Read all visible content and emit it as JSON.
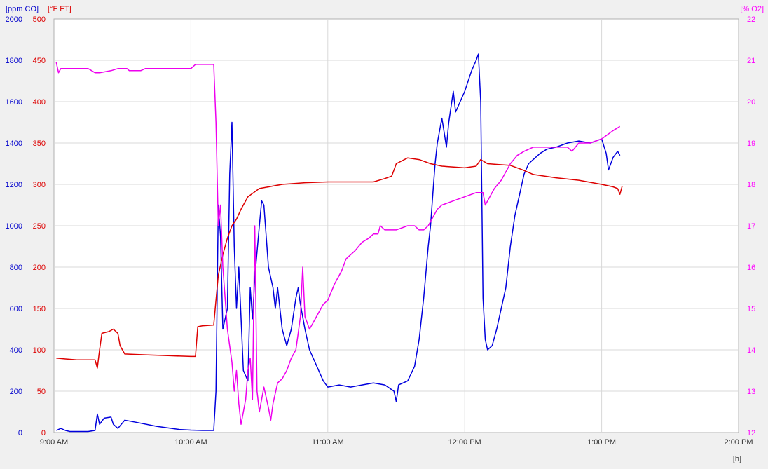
{
  "chart_data": {
    "type": "line",
    "axes": {
      "x": {
        "unit_label": "[h]",
        "range": [
          "9:00 AM",
          "2:00 PM"
        ],
        "ticks": [
          "9:00 AM",
          "10:00 AM",
          "11:00 AM",
          "12:00 PM",
          "1:00 PM",
          "2:00 PM"
        ]
      },
      "y_co": {
        "label": "[ppm CO]",
        "color": "#0000cc",
        "range": [
          0,
          2000
        ],
        "ticks": [
          "0",
          "200",
          "400",
          "600",
          "800",
          "1000",
          "1200",
          "1400",
          "1600",
          "1800",
          "2000"
        ]
      },
      "y_temp": {
        "label": "[°F FT]",
        "color": "#dd0000",
        "range": [
          0,
          500
        ],
        "ticks": [
          "0",
          "50",
          "100",
          "150",
          "200",
          "250",
          "300",
          "350",
          "400",
          "450",
          "500"
        ]
      },
      "y_o2": {
        "label": "[% O2]",
        "color": "#ff00ff",
        "range": [
          12,
          22
        ],
        "ticks": [
          "12",
          "13",
          "14",
          "15",
          "16",
          "17",
          "18",
          "19",
          "20",
          "21",
          "22"
        ]
      }
    },
    "grid": true,
    "series": [
      {
        "axis": "y_co",
        "color": "#0000dd",
        "points": [
          [
            "9:01",
            10
          ],
          [
            "9:03",
            20
          ],
          [
            "9:05",
            10
          ],
          [
            "9:07",
            5
          ],
          [
            "9:15",
            5
          ],
          [
            "9:18",
            10
          ],
          [
            "9:19",
            90
          ],
          [
            "9:20",
            40
          ],
          [
            "9:22",
            70
          ],
          [
            "9:25",
            75
          ],
          [
            "9:26",
            40
          ],
          [
            "9:28",
            20
          ],
          [
            "9:31",
            60
          ],
          [
            "9:36",
            50
          ],
          [
            "9:45",
            30
          ],
          [
            "9:55",
            15
          ],
          [
            "10:00",
            12
          ],
          [
            "10:05",
            10
          ],
          [
            "10:10",
            10
          ],
          [
            "10:11",
            200
          ],
          [
            "10:12",
            1100
          ],
          [
            "10:13",
            950
          ],
          [
            "10:14",
            500
          ],
          [
            "10:16",
            600
          ],
          [
            "10:17",
            1250
          ],
          [
            "10:18",
            1500
          ],
          [
            "10:19",
            900
          ],
          [
            "10:20",
            600
          ],
          [
            "10:21",
            800
          ],
          [
            "10:23",
            300
          ],
          [
            "10:25",
            250
          ],
          [
            "10:26",
            700
          ],
          [
            "10:27",
            550
          ],
          [
            "10:28",
            750
          ],
          [
            "10:30",
            1000
          ],
          [
            "10:31",
            1120
          ],
          [
            "10:32",
            1100
          ],
          [
            "10:34",
            800
          ],
          [
            "10:36",
            700
          ],
          [
            "10:37",
            600
          ],
          [
            "10:38",
            700
          ],
          [
            "10:40",
            500
          ],
          [
            "10:42",
            420
          ],
          [
            "10:44",
            500
          ],
          [
            "10:46",
            650
          ],
          [
            "10:47",
            700
          ],
          [
            "10:48",
            620
          ],
          [
            "10:50",
            500
          ],
          [
            "10:52",
            400
          ],
          [
            "10:54",
            350
          ],
          [
            "10:56",
            300
          ],
          [
            "10:58",
            250
          ],
          [
            "11:00",
            220
          ],
          [
            "11:05",
            230
          ],
          [
            "11:10",
            220
          ],
          [
            "11:15",
            230
          ],
          [
            "11:20",
            240
          ],
          [
            "11:25",
            230
          ],
          [
            "11:29",
            200
          ],
          [
            "11:30",
            150
          ],
          [
            "11:31",
            230
          ],
          [
            "11:35",
            250
          ],
          [
            "11:38",
            320
          ],
          [
            "11:40",
            450
          ],
          [
            "11:42",
            650
          ],
          [
            "11:44",
            900
          ],
          [
            "11:45",
            1000
          ],
          [
            "11:46",
            1150
          ],
          [
            "11:47",
            1300
          ],
          [
            "11:48",
            1400
          ],
          [
            "11:50",
            1520
          ],
          [
            "11:51",
            1450
          ],
          [
            "11:52",
            1380
          ],
          [
            "11:53",
            1500
          ],
          [
            "11:55",
            1650
          ],
          [
            "11:56",
            1550
          ],
          [
            "11:58",
            1600
          ],
          [
            "12:00",
            1650
          ],
          [
            "12:03",
            1750
          ],
          [
            "12:05",
            1800
          ],
          [
            "12:06",
            1830
          ],
          [
            "12:07",
            1600
          ],
          [
            "12:08",
            650
          ],
          [
            "12:09",
            450
          ],
          [
            "12:10",
            400
          ],
          [
            "12:12",
            420
          ],
          [
            "12:14",
            500
          ],
          [
            "12:16",
            600
          ],
          [
            "12:18",
            700
          ],
          [
            "12:20",
            900
          ],
          [
            "12:22",
            1050
          ],
          [
            "12:24",
            1150
          ],
          [
            "12:26",
            1250
          ],
          [
            "12:28",
            1300
          ],
          [
            "12:30",
            1320
          ],
          [
            "12:33",
            1350
          ],
          [
            "12:36",
            1370
          ],
          [
            "12:40",
            1380
          ],
          [
            "12:45",
            1400
          ],
          [
            "12:50",
            1410
          ],
          [
            "12:55",
            1400
          ],
          [
            "13:00",
            1420
          ],
          [
            "13:02",
            1350
          ],
          [
            "13:03",
            1270
          ],
          [
            "13:05",
            1330
          ],
          [
            "13:07",
            1360
          ],
          [
            "13:08",
            1340
          ]
        ]
      },
      {
        "axis": "y_temp",
        "color": "#dd0000",
        "points": [
          [
            "9:01",
            90
          ],
          [
            "9:05",
            89
          ],
          [
            "9:10",
            88
          ],
          [
            "9:18",
            88
          ],
          [
            "9:19",
            78
          ],
          [
            "9:20",
            100
          ],
          [
            "9:21",
            120
          ],
          [
            "9:24",
            122
          ],
          [
            "9:26",
            125
          ],
          [
            "9:28",
            120
          ],
          [
            "9:29",
            105
          ],
          [
            "9:31",
            95
          ],
          [
            "9:40",
            94
          ],
          [
            "9:50",
            93
          ],
          [
            "10:00",
            92
          ],
          [
            "10:02",
            92
          ],
          [
            "10:03",
            128
          ],
          [
            "10:05",
            129
          ],
          [
            "10:10",
            130
          ],
          [
            "10:11",
            160
          ],
          [
            "10:12",
            190
          ],
          [
            "10:14",
            215
          ],
          [
            "10:16",
            235
          ],
          [
            "10:18",
            250
          ],
          [
            "10:20",
            258
          ],
          [
            "10:22",
            270
          ],
          [
            "10:25",
            285
          ],
          [
            "10:30",
            295
          ],
          [
            "10:40",
            300
          ],
          [
            "10:50",
            302
          ],
          [
            "11:00",
            303
          ],
          [
            "11:10",
            303
          ],
          [
            "11:20",
            303
          ],
          [
            "11:25",
            307
          ],
          [
            "11:28",
            310
          ],
          [
            "11:30",
            325
          ],
          [
            "11:35",
            332
          ],
          [
            "11:40",
            330
          ],
          [
            "11:45",
            325
          ],
          [
            "11:50",
            322
          ],
          [
            "12:00",
            320
          ],
          [
            "12:05",
            322
          ],
          [
            "12:07",
            330
          ],
          [
            "12:10",
            325
          ],
          [
            "12:15",
            324
          ],
          [
            "12:20",
            323
          ],
          [
            "12:25",
            318
          ],
          [
            "12:30",
            312
          ],
          [
            "12:40",
            308
          ],
          [
            "12:50",
            305
          ],
          [
            "13:00",
            300
          ],
          [
            "13:05",
            297
          ],
          [
            "13:07",
            295
          ],
          [
            "13:08",
            288
          ],
          [
            "13:09",
            298
          ]
        ]
      },
      {
        "axis": "y_o2",
        "color": "#ee00ee",
        "points": [
          [
            "9:01",
            20.95
          ],
          [
            "9:02",
            20.7
          ],
          [
            "9:03",
            20.8
          ],
          [
            "9:05",
            20.8
          ],
          [
            "9:15",
            20.8
          ],
          [
            "9:18",
            20.7
          ],
          [
            "9:20",
            20.7
          ],
          [
            "9:25",
            20.75
          ],
          [
            "9:28",
            20.8
          ],
          [
            "9:32",
            20.8
          ],
          [
            "9:33",
            20.75
          ],
          [
            "9:38",
            20.75
          ],
          [
            "9:40",
            20.8
          ],
          [
            "9:55",
            20.8
          ],
          [
            "10:00",
            20.8
          ],
          [
            "10:02",
            20.9
          ],
          [
            "10:05",
            20.9
          ],
          [
            "10:10",
            20.9
          ],
          [
            "10:11",
            19.5
          ],
          [
            "10:12",
            17.0
          ],
          [
            "10:13",
            17.5
          ],
          [
            "10:14",
            16.0
          ],
          [
            "10:16",
            14.5
          ],
          [
            "10:18",
            13.7
          ],
          [
            "10:19",
            13.0
          ],
          [
            "10:20",
            13.5
          ],
          [
            "10:21",
            12.7
          ],
          [
            "10:22",
            12.2
          ],
          [
            "10:24",
            12.8
          ],
          [
            "10:25",
            13.5
          ],
          [
            "10:26",
            13.8
          ],
          [
            "10:27",
            12.8
          ],
          [
            "10:28",
            17.0
          ],
          [
            "10:29",
            13.0
          ],
          [
            "10:30",
            12.5
          ],
          [
            "10:32",
            13.1
          ],
          [
            "10:34",
            12.6
          ],
          [
            "10:35",
            12.3
          ],
          [
            "10:36",
            12.7
          ],
          [
            "10:38",
            13.2
          ],
          [
            "10:40",
            13.3
          ],
          [
            "10:42",
            13.5
          ],
          [
            "10:44",
            13.8
          ],
          [
            "10:46",
            14.0
          ],
          [
            "10:47",
            14.4
          ],
          [
            "10:48",
            14.8
          ],
          [
            "10:49",
            16.0
          ],
          [
            "10:50",
            14.8
          ],
          [
            "10:52",
            14.5
          ],
          [
            "10:54",
            14.7
          ],
          [
            "10:56",
            14.9
          ],
          [
            "10:58",
            15.1
          ],
          [
            "11:00",
            15.2
          ],
          [
            "11:03",
            15.6
          ],
          [
            "11:06",
            15.9
          ],
          [
            "11:08",
            16.2
          ],
          [
            "11:10",
            16.3
          ],
          [
            "11:12",
            16.4
          ],
          [
            "11:15",
            16.6
          ],
          [
            "11:18",
            16.7
          ],
          [
            "11:20",
            16.8
          ],
          [
            "11:22",
            16.8
          ],
          [
            "11:23",
            17.0
          ],
          [
            "11:25",
            16.9
          ],
          [
            "11:30",
            16.9
          ],
          [
            "11:35",
            17.0
          ],
          [
            "11:38",
            17.0
          ],
          [
            "11:40",
            16.9
          ],
          [
            "11:42",
            16.9
          ],
          [
            "11:44",
            17.0
          ],
          [
            "11:46",
            17.2
          ],
          [
            "11:48",
            17.4
          ],
          [
            "11:50",
            17.5
          ],
          [
            "11:55",
            17.6
          ],
          [
            "12:00",
            17.7
          ],
          [
            "12:05",
            17.8
          ],
          [
            "12:08",
            17.8
          ],
          [
            "12:09",
            17.5
          ],
          [
            "12:10",
            17.6
          ],
          [
            "12:13",
            17.9
          ],
          [
            "12:16",
            18.1
          ],
          [
            "12:18",
            18.3
          ],
          [
            "12:20",
            18.5
          ],
          [
            "12:23",
            18.7
          ],
          [
            "12:26",
            18.8
          ],
          [
            "12:30",
            18.9
          ],
          [
            "12:35",
            18.9
          ],
          [
            "12:40",
            18.9
          ],
          [
            "12:45",
            18.9
          ],
          [
            "12:47",
            18.8
          ],
          [
            "12:50",
            19.0
          ],
          [
            "12:55",
            19.0
          ],
          [
            "13:00",
            19.1
          ],
          [
            "13:05",
            19.3
          ],
          [
            "13:08",
            19.4
          ]
        ]
      }
    ]
  }
}
